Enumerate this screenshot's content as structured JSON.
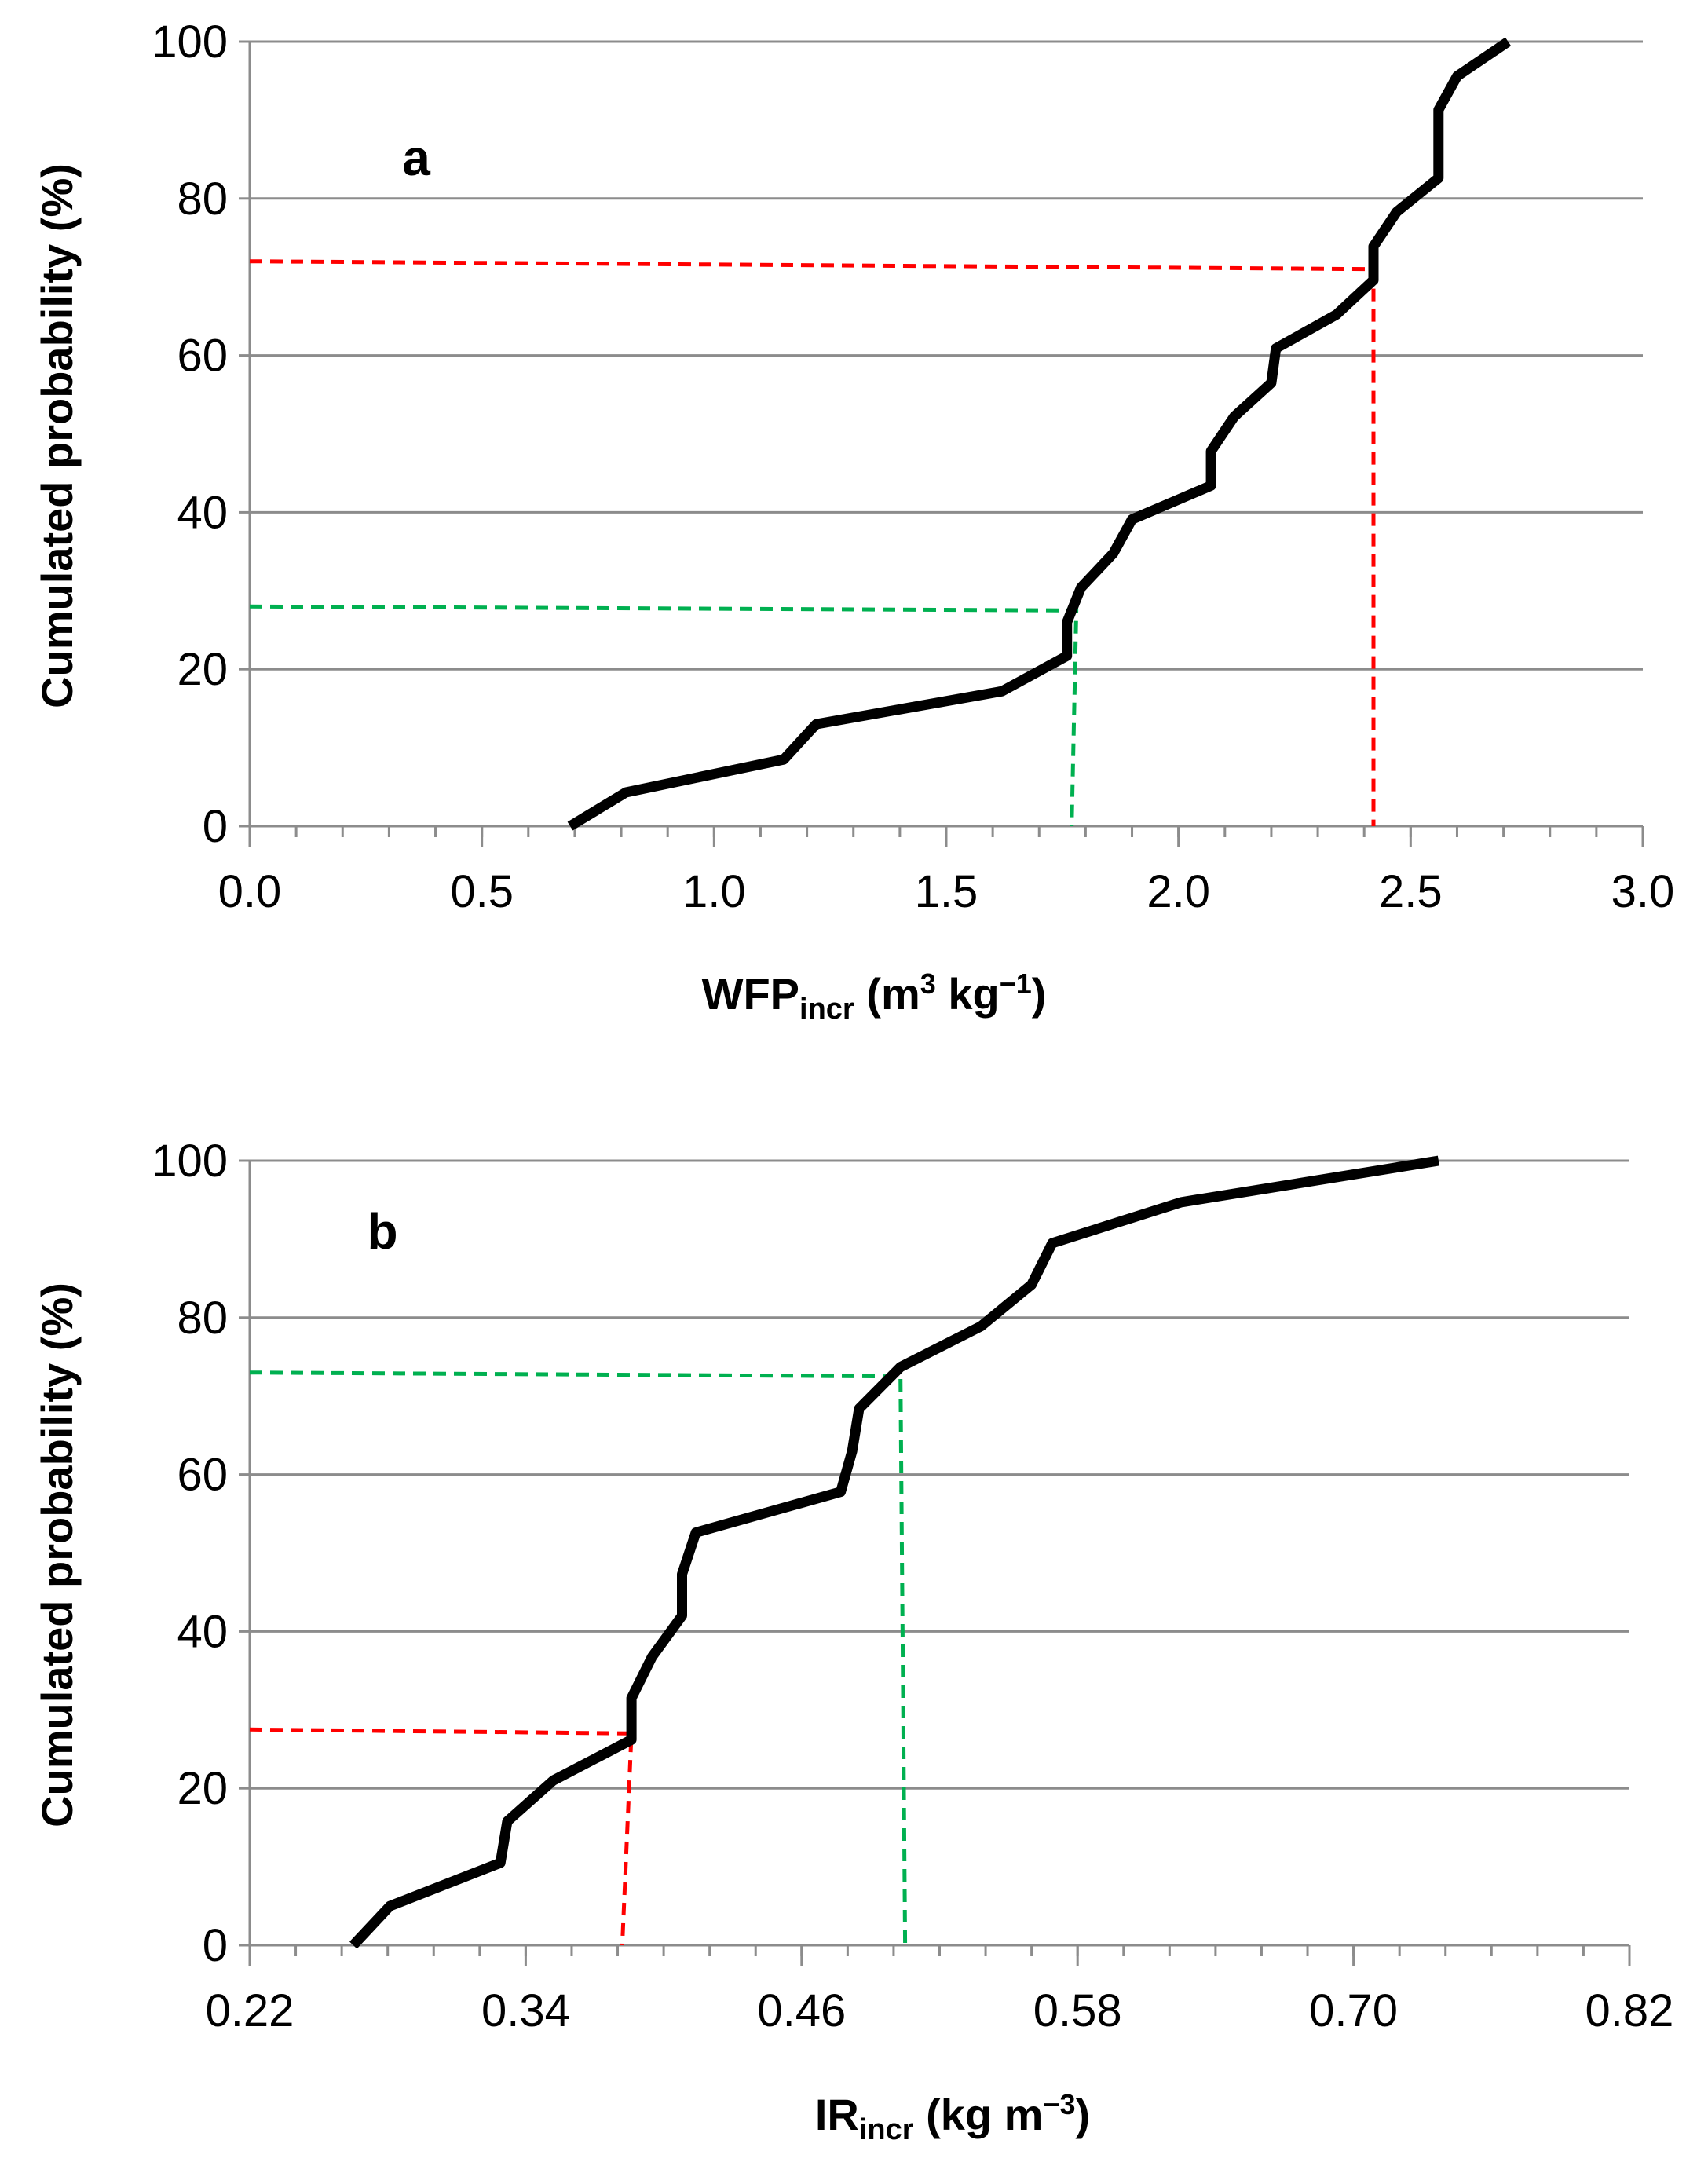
{
  "chart_data": [
    {
      "type": "line",
      "panel_label": "a",
      "xlabel": {
        "main": "WFP",
        "sub": "incr",
        "unit_open": " (m",
        "unit_sup1": "3",
        "unit_mid": " kg",
        "unit_sup2": "−1",
        "unit_close": ")"
      },
      "ylabel": "Cumulated probability (%)",
      "xlim": [
        0,
        3
      ],
      "ylim": [
        0,
        100
      ],
      "xticks": [
        "0.0",
        "0.5",
        "1.0",
        "1.5",
        "2.0",
        "2.5",
        "3.0"
      ],
      "xtick_values": [
        0,
        0.5,
        1.0,
        1.5,
        2.0,
        2.5,
        3.0
      ],
      "yticks": [
        "0",
        "20",
        "40",
        "60",
        "80",
        "100"
      ],
      "ytick_values": [
        0,
        20,
        40,
        60,
        80,
        100
      ],
      "grid": "horizontal",
      "series": [
        {
          "color": "#000000",
          "points": [
            [
              0.69,
              0
            ],
            [
              0.81,
              4.3
            ],
            [
              1.15,
              8.5
            ],
            [
              1.22,
              13
            ],
            [
              1.62,
              17.2
            ],
            [
              1.76,
              21.7
            ],
            [
              1.76,
              26
            ],
            [
              1.79,
              30.4
            ],
            [
              1.86,
              34.8
            ],
            [
              1.9,
              39.1
            ],
            [
              2.07,
              43.4
            ],
            [
              2.07,
              47.8
            ],
            [
              2.12,
              52.2
            ],
            [
              2.2,
              56.5
            ],
            [
              2.21,
              60.9
            ],
            [
              2.34,
              65.2
            ],
            [
              2.42,
              69.6
            ],
            [
              2.42,
              73.9
            ],
            [
              2.47,
              78.3
            ],
            [
              2.56,
              82.6
            ],
            [
              2.56,
              87
            ],
            [
              2.56,
              91.3
            ],
            [
              2.6,
              95.6
            ],
            [
              2.71,
              100
            ]
          ]
        }
      ],
      "reference_lines": [
        {
          "color": "#ff0000",
          "points": [
            [
              0,
              72
            ],
            [
              2.42,
              71
            ],
            [
              2.42,
              0
            ]
          ]
        },
        {
          "color": "#00b050",
          "points": [
            [
              0,
              28
            ],
            [
              1.78,
              27.5
            ],
            [
              1.77,
              0
            ]
          ]
        }
      ]
    },
    {
      "type": "line",
      "panel_label": "b",
      "xlabel": {
        "main": "IR",
        "sub": "incr",
        "unit_open": " (kg m",
        "unit_sup1": "−3",
        "unit_mid": "",
        "unit_sup2": "",
        "unit_close": ")"
      },
      "ylabel": "Cumulated probability (%)",
      "xlim": [
        0.22,
        0.82
      ],
      "ylim": [
        0,
        100
      ],
      "xticks": [
        "0.22",
        "0.34",
        "0.46",
        "0.58",
        "0.70",
        "0.82"
      ],
      "xtick_values": [
        0.22,
        0.34,
        0.46,
        0.58,
        0.7,
        0.82
      ],
      "yticks": [
        "0",
        "20",
        "40",
        "60",
        "80",
        "100"
      ],
      "ytick_values": [
        0,
        20,
        40,
        60,
        80,
        100
      ],
      "grid": "horizontal",
      "series": [
        {
          "color": "#000000",
          "points": [
            [
              0.265,
              0
            ],
            [
              0.281,
              5
            ],
            [
              0.329,
              10.5
            ],
            [
              0.332,
              15.8
            ],
            [
              0.352,
              21
            ],
            [
              0.386,
              26.2
            ],
            [
              0.386,
              31.5
            ],
            [
              0.395,
              36.8
            ],
            [
              0.408,
              42
            ],
            [
              0.408,
              47.3
            ],
            [
              0.414,
              52.6
            ],
            [
              0.477,
              57.8
            ],
            [
              0.482,
              63
            ],
            [
              0.485,
              68.4
            ],
            [
              0.503,
              73.7
            ],
            [
              0.538,
              78.9
            ],
            [
              0.56,
              84.2
            ],
            [
              0.569,
              89.5
            ],
            [
              0.625,
              94.7
            ],
            [
              0.737,
              100
            ]
          ]
        }
      ],
      "reference_lines": [
        {
          "color": "#ff0000",
          "points": [
            [
              0.22,
              27.5
            ],
            [
              0.386,
              27
            ],
            [
              0.382,
              0
            ]
          ]
        },
        {
          "color": "#00b050",
          "points": [
            [
              0.22,
              73
            ],
            [
              0.503,
              72.5
            ],
            [
              0.505,
              0
            ]
          ]
        }
      ]
    }
  ]
}
